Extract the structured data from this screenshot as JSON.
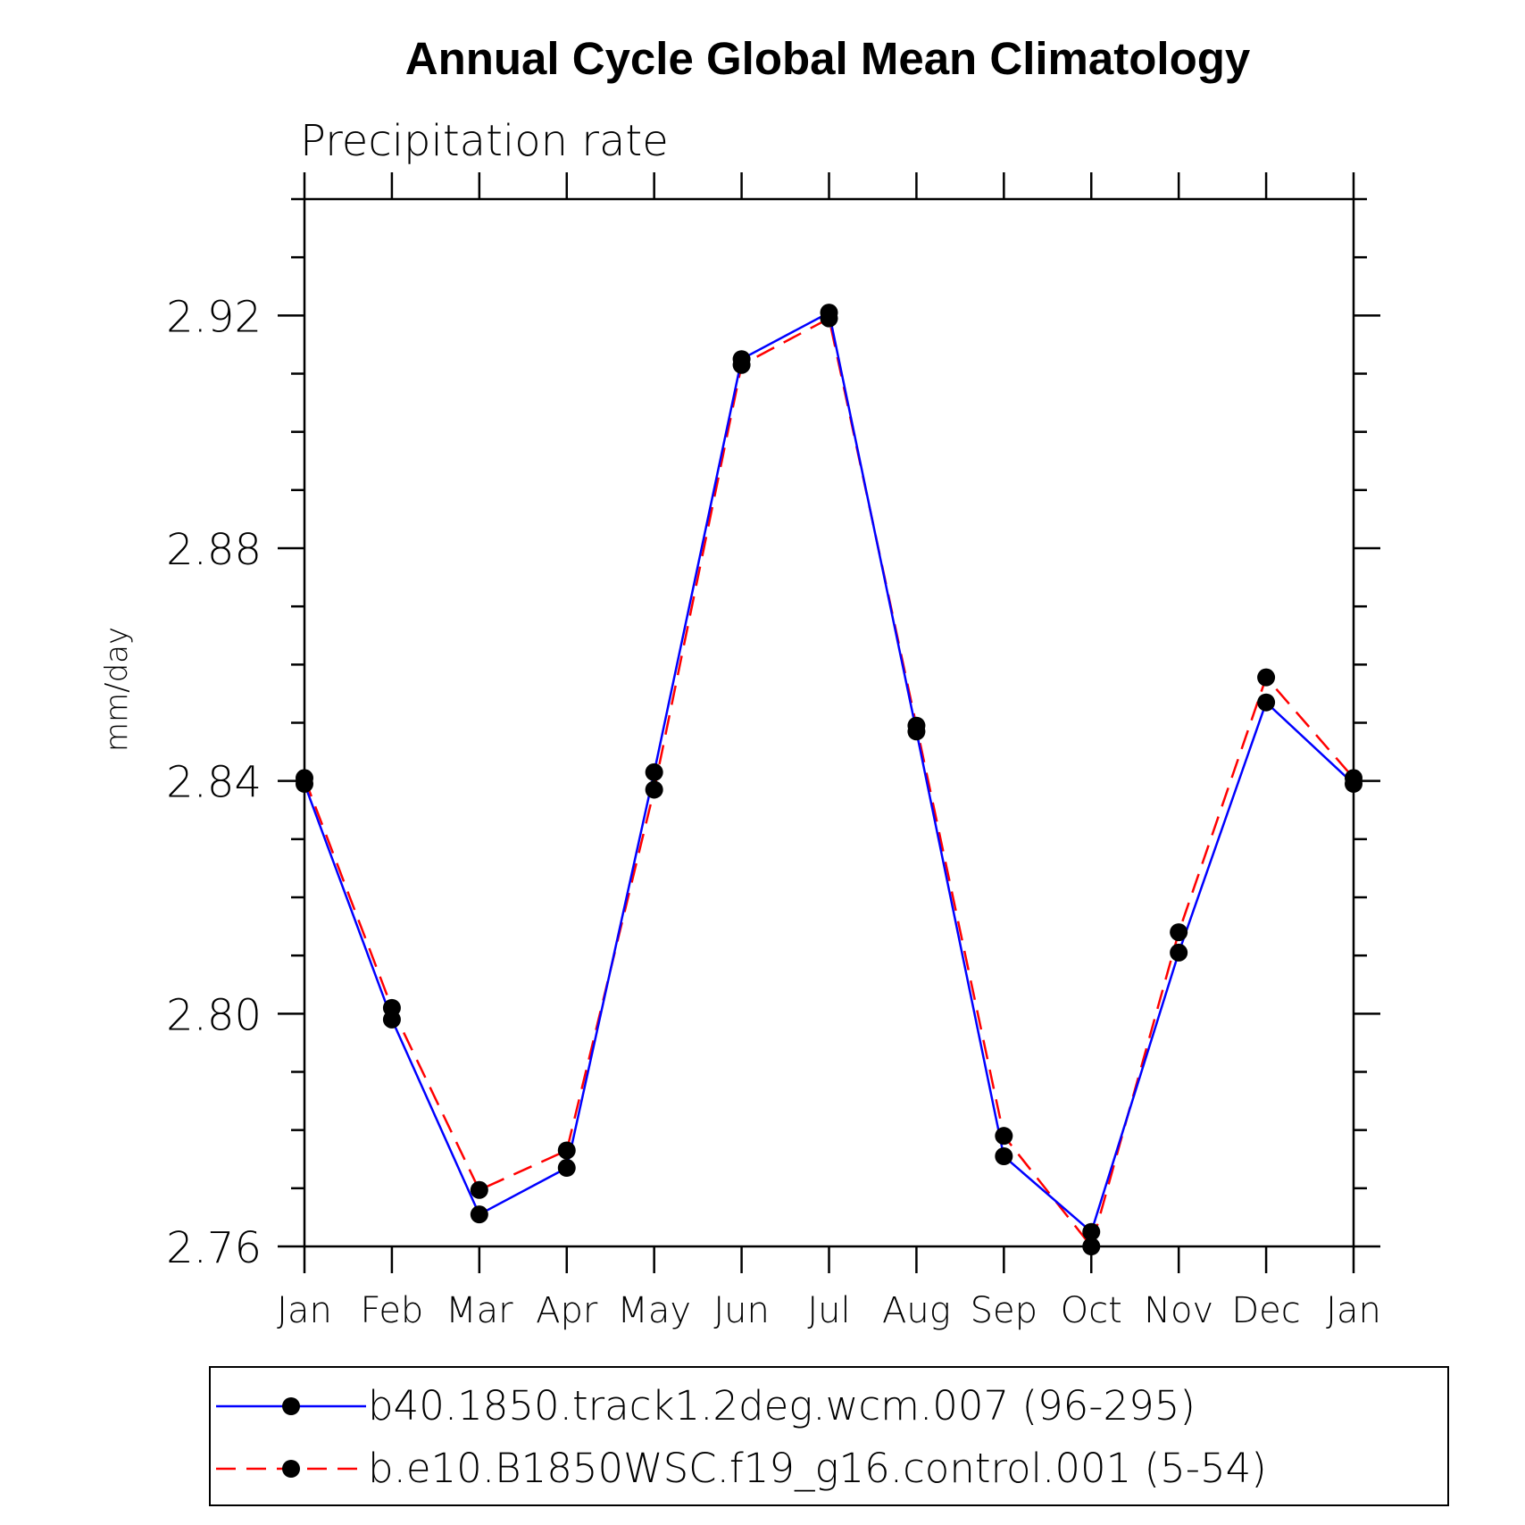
{
  "chart_data": {
    "type": "line",
    "title": "Annual Cycle Global Mean Climatology",
    "subtitle": "Precipitation rate",
    "xlabel": "",
    "ylabel": "mm/day",
    "categories": [
      "Jan",
      "Feb",
      "Mar",
      "Apr",
      "May",
      "Jun",
      "Jul",
      "Aug",
      "Sep",
      "Oct",
      "Nov",
      "Dec",
      "Jan"
    ],
    "ylim": [
      2.76,
      2.94
    ],
    "yticks": [
      "2.76",
      "2.80",
      "2.84",
      "2.88",
      "2.92"
    ],
    "grid": false,
    "legend_position": "bottom",
    "series": [
      {
        "name": "b40.1850.track1.2deg.wcm.007 (96-295)",
        "color": "#0000ff",
        "style": "solid",
        "values": [
          2.8395,
          2.799,
          2.7655,
          2.7735,
          2.8415,
          2.9125,
          2.9205,
          2.8485,
          2.7755,
          2.7625,
          2.8105,
          2.8535,
          2.8395
        ]
      },
      {
        "name": "b.e10.B1850WSC.f19_g16.control.001 (5-54)",
        "color": "#ff0000",
        "style": "dashed",
        "values": [
          2.8405,
          2.801,
          2.7697,
          2.7765,
          2.8385,
          2.9115,
          2.9195,
          2.8495,
          2.779,
          2.76,
          2.814,
          2.8578,
          2.8405
        ]
      }
    ]
  }
}
